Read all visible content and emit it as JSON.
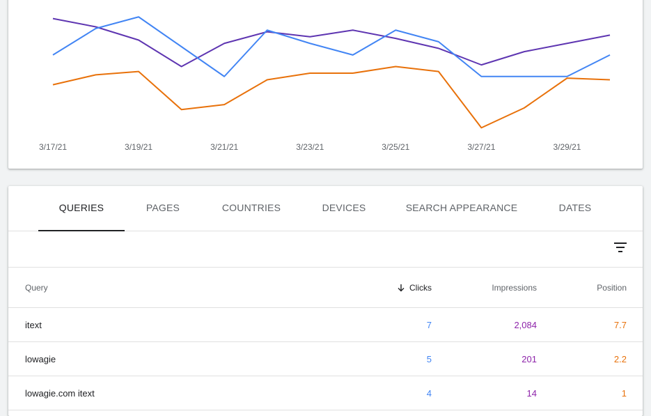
{
  "chart_data": {
    "type": "line",
    "x": [
      "3/17/21",
      "3/18/21",
      "3/19/21",
      "3/20/21",
      "3/21/21",
      "3/22/21",
      "3/23/21",
      "3/24/21",
      "3/25/21",
      "3/26/21",
      "3/27/21",
      "3/28/21",
      "3/29/21",
      "3/30/21"
    ],
    "x_tick_labels": [
      "3/17/21",
      "3/19/21",
      "3/21/21",
      "3/23/21",
      "3/25/21",
      "3/27/21",
      "3/29/21"
    ],
    "series": [
      {
        "color": "#5e35b1",
        "values": [
          8.8,
          8.3,
          7.5,
          5.9,
          7.3,
          8.0,
          7.7,
          8.1,
          7.6,
          7.0,
          6.0,
          6.8,
          7.3,
          7.8
        ]
      },
      {
        "color": "#4285f4",
        "values": [
          6.6,
          8.2,
          8.9,
          7.1,
          5.3,
          8.1,
          7.3,
          6.6,
          8.1,
          7.4,
          5.3,
          5.3,
          5.3,
          6.6
        ]
      },
      {
        "color": "#e8710a",
        "values": [
          4.8,
          5.4,
          5.6,
          3.3,
          3.6,
          5.1,
          5.5,
          5.5,
          5.9,
          5.6,
          2.2,
          3.4,
          5.2,
          5.1
        ]
      }
    ],
    "ylim": [
      1.5,
      9.5
    ],
    "grid": false
  },
  "tabs": [
    {
      "label": "QUERIES"
    },
    {
      "label": "PAGES"
    },
    {
      "label": "COUNTRIES"
    },
    {
      "label": "DEVICES"
    },
    {
      "label": "SEARCH APPEARANCE"
    },
    {
      "label": "DATES"
    }
  ],
  "table": {
    "columns": {
      "query": "Query",
      "clicks": "Clicks",
      "impressions": "Impressions",
      "position": "Position"
    },
    "rows": [
      {
        "query": "itext",
        "clicks": "7",
        "impressions": "2,084",
        "position": "7.7"
      },
      {
        "query": "lowagie",
        "clicks": "5",
        "impressions": "201",
        "position": "2.2"
      },
      {
        "query": "lowagie.com itext",
        "clicks": "4",
        "impressions": "14",
        "position": "1"
      }
    ]
  },
  "icons": {
    "filter": "filter-list-icon",
    "sort": "arrow-downward-icon"
  }
}
